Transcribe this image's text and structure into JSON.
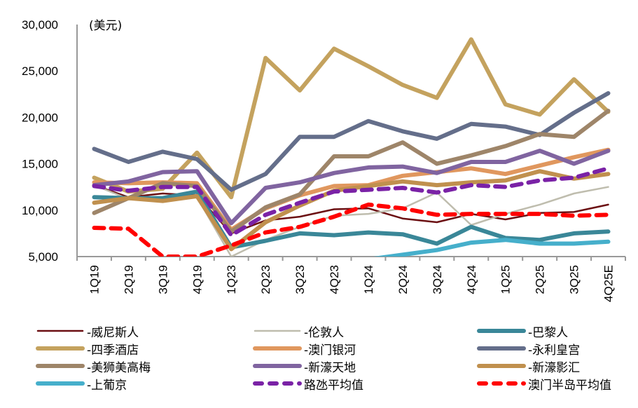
{
  "chart_data": {
    "type": "line",
    "title": "",
    "unit_label": "(美元)",
    "xlabel": "",
    "ylabel": "",
    "ylim": [
      5000,
      30000
    ],
    "yticks": [
      5000,
      10000,
      15000,
      20000,
      25000,
      30000
    ],
    "ytick_labels": [
      "5,000",
      "10,000",
      "15,000",
      "20,000",
      "25,000",
      "30,000"
    ],
    "grid": false,
    "legend_position": "bottom",
    "categories": [
      "1Q19",
      "2Q19",
      "3Q19",
      "4Q19",
      "1Q23",
      "2Q23",
      "3Q23",
      "4Q23",
      "1Q24",
      "2Q24",
      "3Q24",
      "4Q24",
      "1Q25",
      "2Q25",
      "3Q25",
      "4Q25E"
    ],
    "series": [
      {
        "name": "-威尼斯人",
        "color": "#6B0F12",
        "style": "thin",
        "values": [
          12700,
          11400,
          11800,
          11600,
          7500,
          8900,
          9300,
          10100,
          10200,
          9100,
          8700,
          9600,
          9000,
          9700,
          9800,
          10600
        ]
      },
      {
        "name": "-伦敦人",
        "color": "#BFBDAE",
        "style": "thin",
        "values": [
          12700,
          11200,
          11200,
          11400,
          5000,
          6800,
          8200,
          9400,
          9600,
          10200,
          11900,
          8400,
          9600,
          10600,
          11800,
          12500
        ]
      },
      {
        "name": "-巴黎人",
        "color": "#3A8798",
        "style": "thick",
        "values": [
          11400,
          11300,
          11300,
          12000,
          6000,
          6700,
          7500,
          7300,
          7600,
          7400,
          6400,
          8200,
          7000,
          6800,
          7500,
          7700
        ]
      },
      {
        "name": "-四季酒店",
        "color": "#C4A25E",
        "style": "thick",
        "values": [
          13500,
          12000,
          12300,
          16200,
          11400,
          26400,
          22900,
          27400,
          25500,
          23500,
          22100,
          28400,
          21400,
          20300,
          24100,
          20600
        ]
      },
      {
        "name": "-澳门银河",
        "color": "#E0975E",
        "style": "thick",
        "values": [
          13000,
          12900,
          13000,
          12900,
          7900,
          10200,
          11600,
          12600,
          12700,
          13700,
          14100,
          14500,
          13900,
          14800,
          15700,
          16500
        ]
      },
      {
        "name": "-永利皇宫",
        "color": "#646E8A",
        "style": "thick",
        "values": [
          16600,
          15200,
          16300,
          15500,
          12200,
          13900,
          17900,
          17900,
          19600,
          18500,
          17700,
          19300,
          19000,
          18100,
          20500,
          22600
        ]
      },
      {
        "name": "-美狮美高梅",
        "color": "#9E8569",
        "style": "thick",
        "values": [
          9700,
          11300,
          12900,
          12600,
          7700,
          10300,
          11700,
          15800,
          15800,
          17300,
          15000,
          15900,
          16900,
          18200,
          17900,
          20700
        ]
      },
      {
        "name": "-新濠天地",
        "color": "#8064A0",
        "style": "thick",
        "values": [
          12700,
          13100,
          14100,
          14200,
          8600,
          12400,
          13000,
          14000,
          14600,
          14700,
          14000,
          15200,
          15200,
          16400,
          15000,
          16400
        ]
      },
      {
        "name": "-新濠影汇",
        "color": "#C0904E",
        "style": "thick",
        "values": [
          10800,
          11300,
          11000,
          11500,
          5800,
          8700,
          10500,
          12100,
          12600,
          13100,
          12700,
          13000,
          13200,
          14200,
          13400,
          13900
        ]
      },
      {
        "name": "-上葡京",
        "color": "#46AFCB",
        "style": "thick",
        "values": [
          null,
          null,
          null,
          null,
          null,
          null,
          null,
          null,
          4700,
          5200,
          5700,
          6500,
          6800,
          6400,
          6400,
          6600
        ]
      },
      {
        "name": "路氹平均值",
        "color": "#7A22A6",
        "style": "dashed",
        "values": [
          12600,
          12100,
          12500,
          12500,
          7300,
          9500,
          10800,
          12000,
          12200,
          12400,
          11900,
          12700,
          12500,
          13200,
          13500,
          14500
        ]
      },
      {
        "name": "澳门半岛平均值",
        "color": "#FF0000",
        "style": "dashed",
        "values": [
          8100,
          8000,
          5000,
          5000,
          6200,
          7600,
          8200,
          9300,
          10600,
          10200,
          9500,
          9600,
          9600,
          9600,
          9400,
          9500
        ]
      }
    ]
  }
}
